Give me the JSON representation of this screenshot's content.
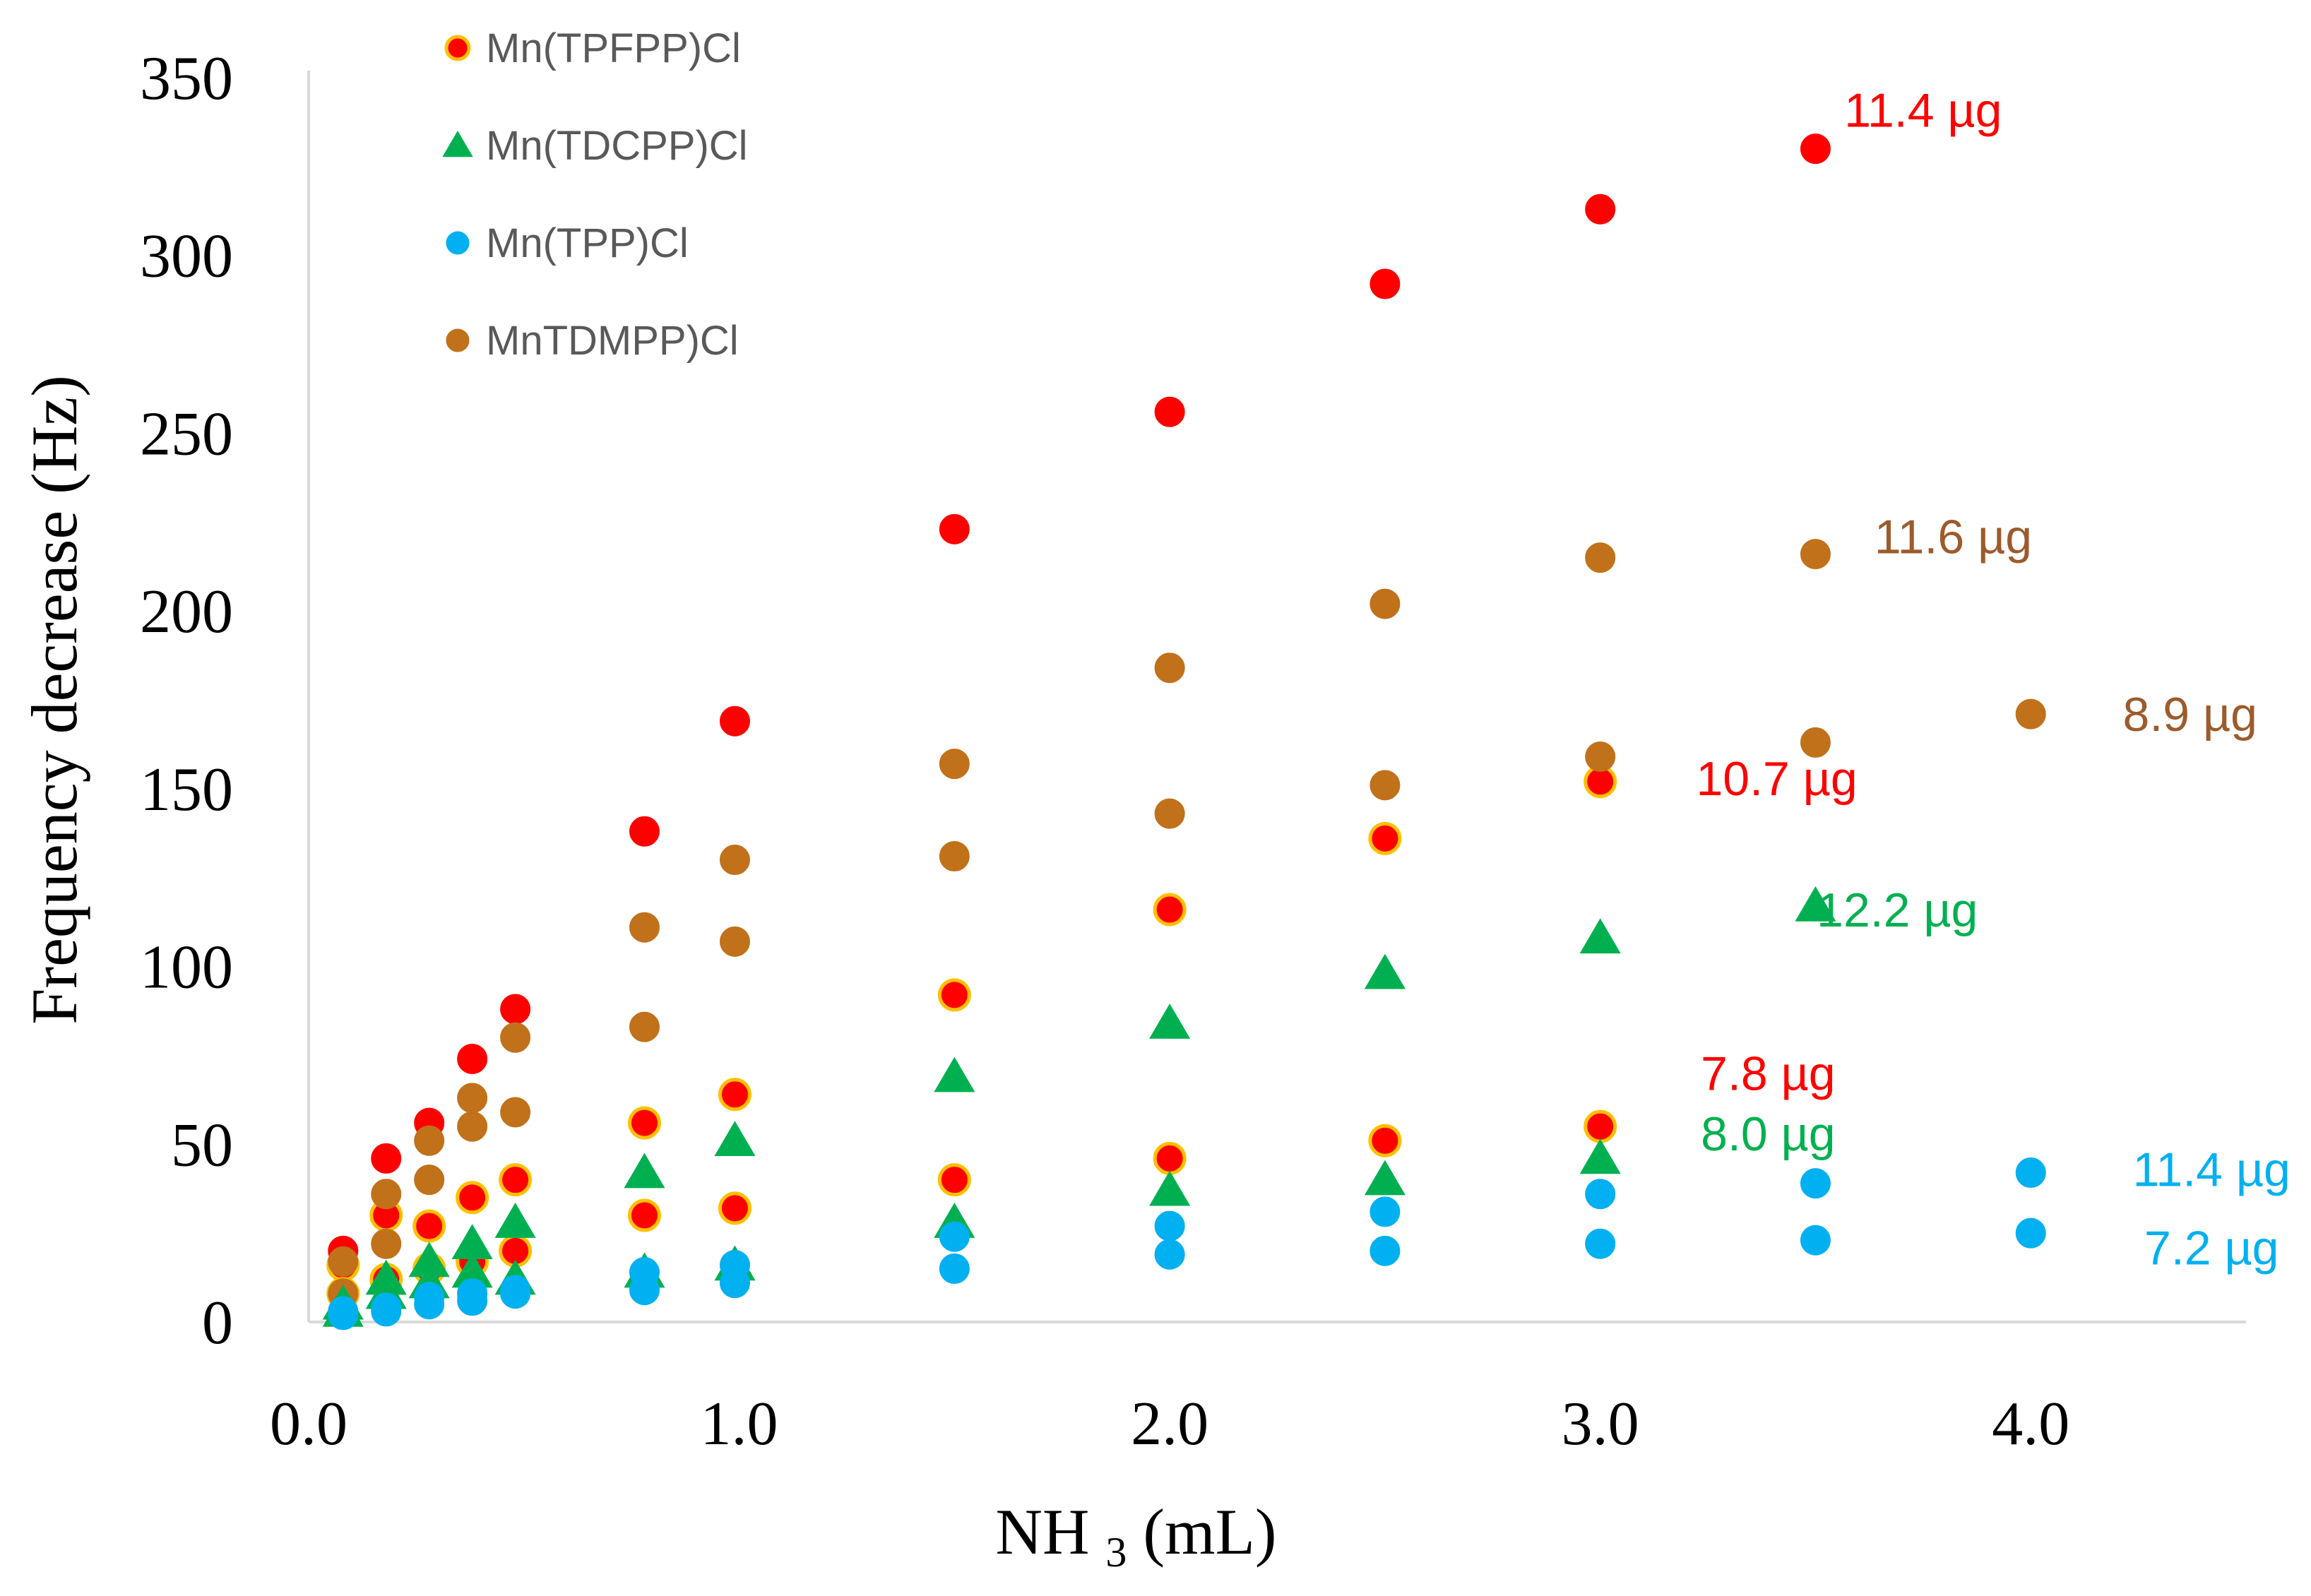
{
  "chart_data": {
    "type": "scatter",
    "title": "",
    "xlabel": "NH3 (mL)",
    "xlabel_main": "NH",
    "xlabel_sub": "3",
    "xlabel_tail": " (mL)",
    "ylabel": "Frequency decrease (Hz)",
    "xlim": [
      0.0,
      4.5
    ],
    "ylim": [
      0,
      350
    ],
    "x_ticks": [
      "0.0",
      "1.0",
      "2.0",
      "3.0",
      "4.0"
    ],
    "x_tick_values": [
      0,
      1,
      2,
      3,
      4
    ],
    "y_ticks": [
      "0",
      "50",
      "100",
      "150",
      "200",
      "250",
      "300",
      "350"
    ],
    "y_tick_values": [
      0,
      50,
      100,
      150,
      200,
      250,
      300,
      350
    ],
    "legend_position": "top-left",
    "legend": [
      {
        "name": "Mn(TPFPP)Cl",
        "marker": "circle",
        "fill": "#ff0000",
        "stroke": "#ffc000"
      },
      {
        "name": "Mn(TDCPP)Cl",
        "marker": "triangle",
        "fill": "#00b050",
        "stroke": "#00b050"
      },
      {
        "name": "Mn(TPP)Cl",
        "marker": "circle",
        "fill": "#00b0f0",
        "stroke": "#00b0f0"
      },
      {
        "name": "MnTDMPP)Cl",
        "marker": "circle",
        "fill": "#c0711a",
        "stroke": "#c0711a"
      }
    ],
    "series": [
      {
        "name": "Mn(TPFPP)Cl 11.4 µg",
        "marker": "circle",
        "fill": "#ff0000",
        "stroke": "#ff0000",
        "x": [
          0.08,
          0.18,
          0.28,
          0.38,
          0.48,
          0.78,
          0.99,
          1.5,
          2.0,
          2.5,
          3.0,
          3.5
        ],
        "y": [
          20,
          46,
          56,
          74,
          88,
          138,
          169,
          223,
          256,
          292,
          313,
          330
        ]
      },
      {
        "name": "Mn(TPFPP)Cl 10.7 µg",
        "marker": "circle",
        "fill": "#ff0000",
        "stroke": "#ffc000",
        "x": [
          0.08,
          0.18,
          0.28,
          0.38,
          0.48,
          0.78,
          0.99,
          1.5,
          2.0,
          2.5,
          3.0
        ],
        "y": [
          16,
          30,
          27,
          35,
          40,
          56,
          64,
          92,
          116,
          136,
          152
        ]
      },
      {
        "name": "Mn(TPFPP)Cl 7.8 µg",
        "marker": "circle",
        "fill": "#ff0000",
        "stroke": "#ffc000",
        "x": [
          0.08,
          0.18,
          0.28,
          0.38,
          0.48,
          0.78,
          0.99,
          1.5,
          2.0,
          2.5,
          3.0
        ],
        "y": [
          8,
          12,
          15,
          17,
          20,
          30,
          32,
          40,
          46,
          51,
          55
        ]
      },
      {
        "name": "MnTDMPP)Cl 11.6 µg",
        "marker": "circle",
        "fill": "#c0711a",
        "stroke": "#c0711a",
        "x": [
          0.08,
          0.18,
          0.28,
          0.38,
          0.48,
          0.78,
          0.99,
          1.5,
          2.0,
          2.5,
          3.0,
          3.5
        ],
        "y": [
          17,
          36,
          51,
          63,
          80,
          111,
          130,
          157,
          184,
          202,
          215,
          216
        ]
      },
      {
        "name": "MnTDMPP)Cl 8.9 µg",
        "marker": "circle",
        "fill": "#c0711a",
        "stroke": "#c0711a",
        "x": [
          0.08,
          0.18,
          0.28,
          0.38,
          0.48,
          0.78,
          0.99,
          1.5,
          2.0,
          2.5,
          3.0,
          3.5,
          4.0
        ],
        "y": [
          8,
          22,
          40,
          55,
          59,
          83,
          107,
          131,
          143,
          151,
          159,
          163,
          171
        ]
      },
      {
        "name": "Mn(TDCPP)Cl 12.2 µg",
        "marker": "triangle",
        "fill": "#00b050",
        "stroke": "#00b050",
        "x": [
          0.08,
          0.18,
          0.28,
          0.38,
          0.48,
          0.78,
          0.99,
          1.5,
          2.0,
          2.5,
          3.0,
          3.5
        ],
        "y": [
          5,
          12,
          17,
          22,
          28,
          42,
          51,
          69,
          84,
          98,
          108,
          117
        ]
      },
      {
        "name": "Mn(TDCPP)Cl 8.0 µg",
        "marker": "triangle",
        "fill": "#00b050",
        "stroke": "#00b050",
        "x": [
          0.08,
          0.18,
          0.28,
          0.38,
          0.48,
          0.78,
          0.99,
          1.5,
          2.0,
          2.5,
          3.0
        ],
        "y": [
          3,
          8,
          11,
          14,
          12,
          14,
          16,
          28,
          37,
          40,
          46
        ]
      },
      {
        "name": "Mn(TPP)Cl 11.4 µg",
        "marker": "circle",
        "fill": "#00b0f0",
        "stroke": "#00b0f0",
        "x": [
          0.08,
          0.18,
          0.28,
          0.38,
          0.48,
          0.78,
          0.99,
          1.5,
          2.0,
          2.5,
          3.0,
          3.5,
          4.0
        ],
        "y": [
          3,
          4,
          7,
          8,
          9,
          14,
          16,
          24,
          27,
          31,
          36,
          39,
          42
        ]
      },
      {
        "name": "Mn(TPP)Cl 7.2 µg",
        "marker": "circle",
        "fill": "#00b0f0",
        "stroke": "#00b0f0",
        "x": [
          0.08,
          0.18,
          0.28,
          0.38,
          0.48,
          0.78,
          0.99,
          1.5,
          2.0,
          2.5,
          3.0,
          3.5,
          4.0
        ],
        "y": [
          2,
          3,
          5,
          6,
          8,
          9,
          11,
          15,
          19,
          20,
          22,
          23,
          25
        ]
      }
    ],
    "annotations": [
      {
        "text": "11.4 µg",
        "color": "#ff0000",
        "x": 3.75,
        "y": 341
      },
      {
        "text": "11.6 µg",
        "color": "#9c5b2c",
        "x": 3.82,
        "y": 221
      },
      {
        "text": "8.9 µg",
        "color": "#9c5b2c",
        "x": 4.37,
        "y": 171
      },
      {
        "text": "10.7 µg",
        "color": "#ff0000",
        "x": 3.41,
        "y": 153
      },
      {
        "text": "12.2 µg",
        "color": "#00b050",
        "x": 3.69,
        "y": 116
      },
      {
        "text": "7.8 µg",
        "color": "#ff0000",
        "x": 3.39,
        "y": 70
      },
      {
        "text": "8.0 µg",
        "color": "#00b050",
        "x": 3.39,
        "y": 53
      },
      {
        "text": "11.4 µg",
        "color": "#00b0f0",
        "x": 4.42,
        "y": 43
      },
      {
        "text": "7.2 µg",
        "color": "#00b0f0",
        "x": 4.42,
        "y": 21
      }
    ]
  }
}
